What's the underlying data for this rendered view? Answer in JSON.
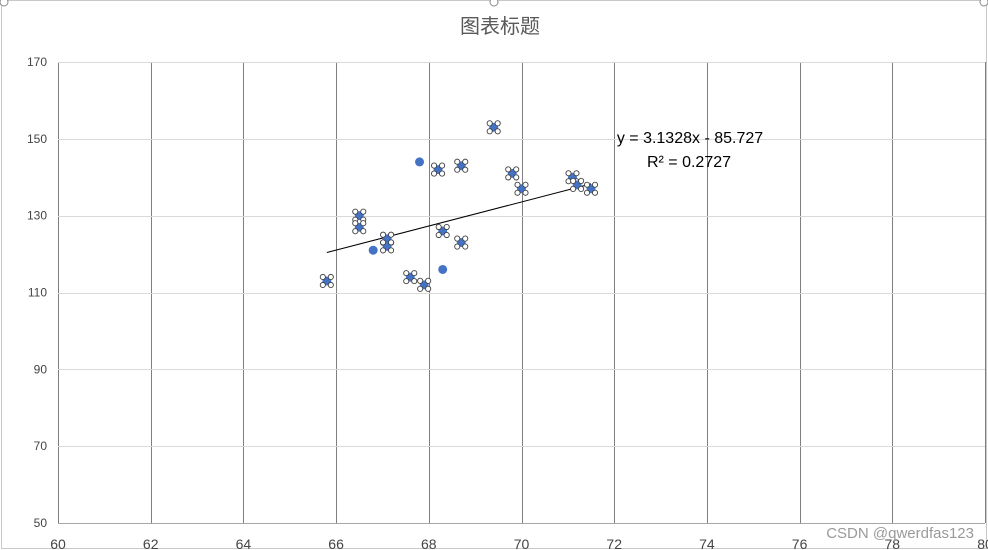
{
  "chart_data": {
    "type": "scatter",
    "title": "图表标题",
    "xlim": [
      60,
      80
    ],
    "ylim": [
      50,
      170
    ],
    "x_ticks": [
      "60",
      "62",
      "64",
      "66",
      "68",
      "70",
      "72",
      "74",
      "76",
      "78",
      "80"
    ],
    "y_ticks": [
      "50",
      "70",
      "90",
      "110",
      "130",
      "150",
      "170"
    ],
    "grid": "vertical",
    "points": [
      {
        "x": 65.8,
        "y": 113,
        "selected": true
      },
      {
        "x": 66.5,
        "y": 130,
        "selected": true
      },
      {
        "x": 66.5,
        "y": 127,
        "selected": true
      },
      {
        "x": 66.8,
        "y": 121,
        "selected": false
      },
      {
        "x": 67.1,
        "y": 124,
        "selected": true
      },
      {
        "x": 67.1,
        "y": 122,
        "selected": true
      },
      {
        "x": 67.6,
        "y": 114,
        "selected": true
      },
      {
        "x": 67.8,
        "y": 144,
        "selected": false
      },
      {
        "x": 67.9,
        "y": 112,
        "selected": true
      },
      {
        "x": 68.2,
        "y": 142,
        "selected": true
      },
      {
        "x": 68.3,
        "y": 126,
        "selected": true
      },
      {
        "x": 68.3,
        "y": 116,
        "selected": false
      },
      {
        "x": 68.7,
        "y": 143,
        "selected": true
      },
      {
        "x": 68.7,
        "y": 123,
        "selected": true
      },
      {
        "x": 69.4,
        "y": 153,
        "selected": true
      },
      {
        "x": 69.8,
        "y": 141,
        "selected": true
      },
      {
        "x": 70.0,
        "y": 137,
        "selected": true
      },
      {
        "x": 71.1,
        "y": 140,
        "selected": true
      },
      {
        "x": 71.2,
        "y": 138,
        "selected": true
      },
      {
        "x": 71.5,
        "y": 137,
        "selected": true
      }
    ],
    "trendline": {
      "type": "linear",
      "x_range": [
        65.8,
        71.5
      ],
      "equation": "y = 3.1328x - 85.727",
      "r_squared": "R² = 0.2727"
    },
    "marker_color": "#4472c4"
  },
  "watermark": "CSDN @qwerdfas123"
}
